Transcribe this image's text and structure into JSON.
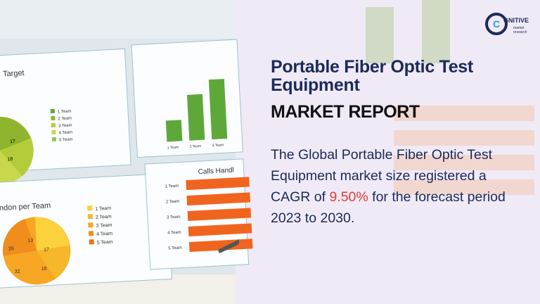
{
  "report": {
    "title": "Portable Fiber Optic Test Equipment",
    "subtitle": "MARKET REPORT",
    "description": {
      "before": "The Global Portable Fiber Optic Test Equipment market size registered a CAGR of",
      "highlight": "9.50%",
      "after": "for the forecast period 2023 to 2030."
    }
  },
  "logo": {
    "initial": "C",
    "name": "GNITIVE",
    "line2": "market",
    "line3": "research"
  },
  "photo": {
    "panel1_title": "Target",
    "panel1_legend": [
      "1 Team",
      "2 Team",
      "3 Team",
      "4 Team",
      "5 Team"
    ],
    "panel1_pie_labels": [
      "17",
      "18"
    ],
    "panel3_title": "ndon per Team",
    "panel3_legend": [
      "1 Team",
      "2 Team",
      "3 Team",
      "4 Team",
      "5 Team"
    ],
    "panel3_pie_labels": [
      "13",
      "17",
      "26",
      "32",
      "18"
    ],
    "panel4_title": "Calls Handl",
    "panel4_categories": [
      "1 Team",
      "2 Team",
      "3 Team",
      "4 Team",
      "5 Team"
    ],
    "panel2_categories": [
      "1 Team",
      "2 Team",
      "3 Team"
    ]
  }
}
